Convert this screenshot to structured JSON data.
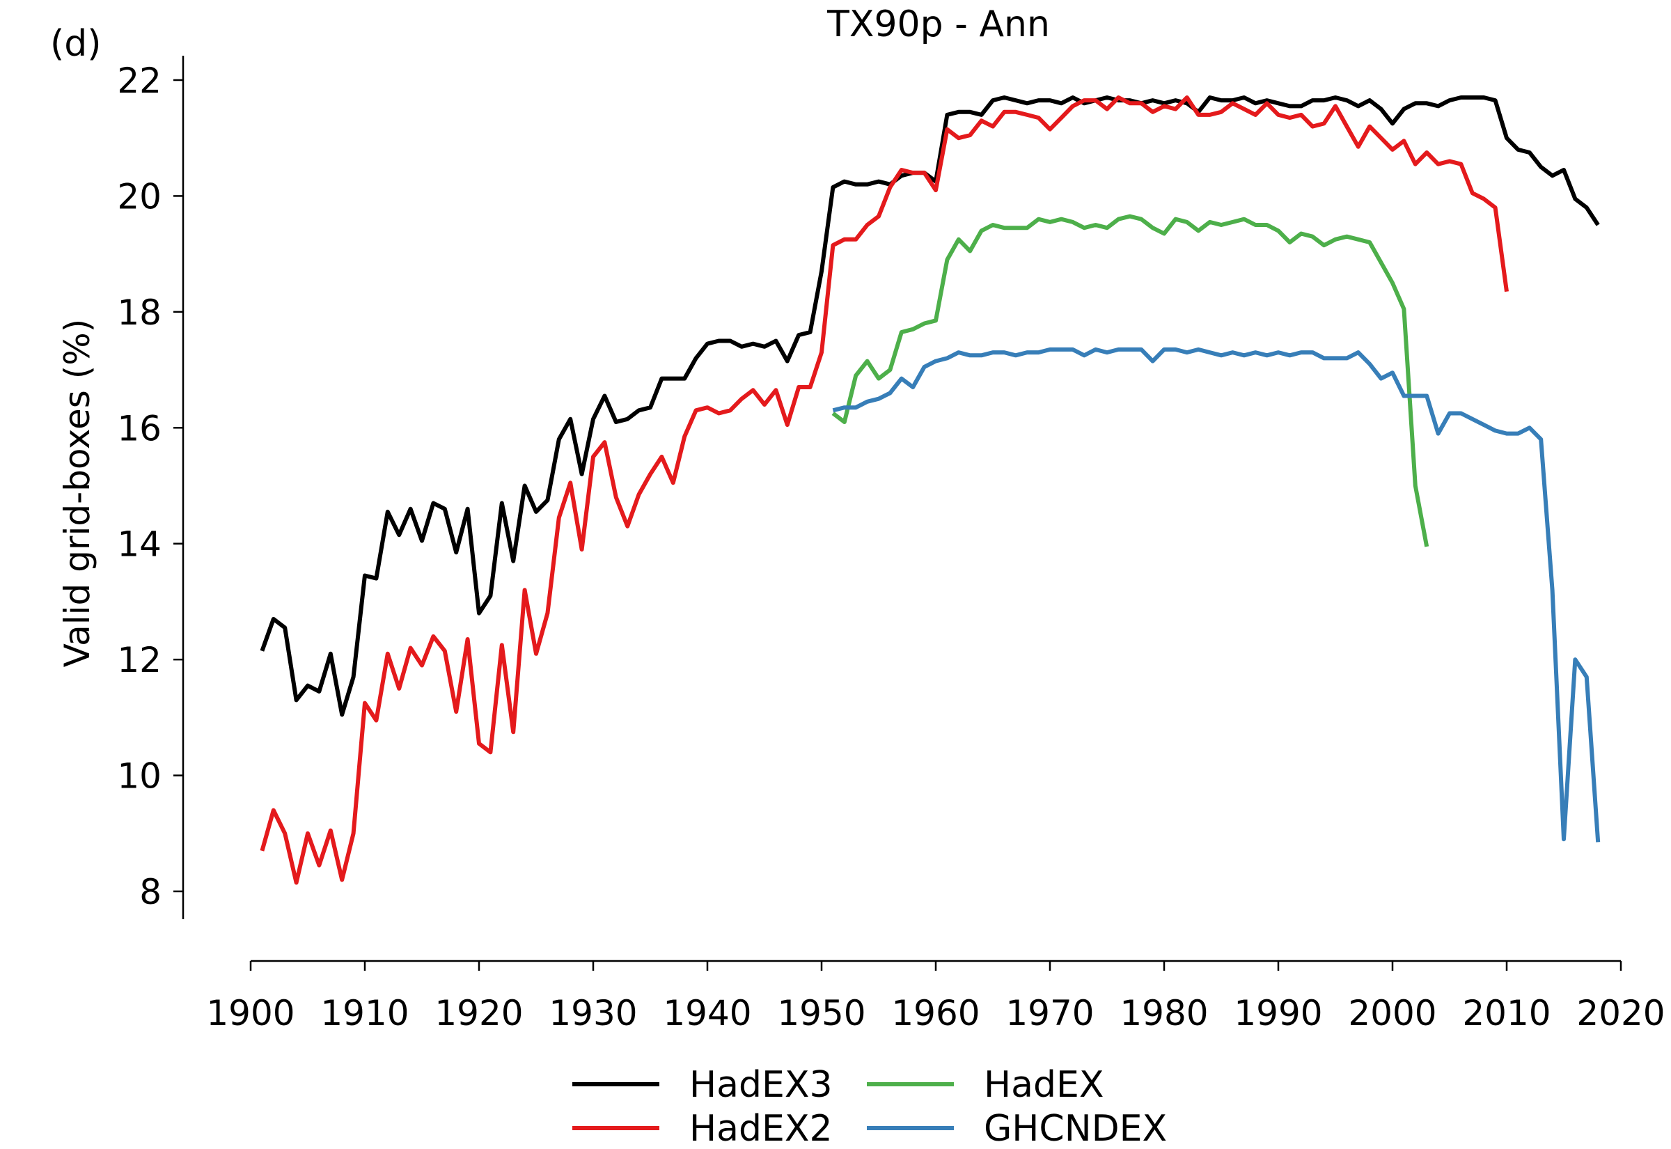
{
  "panel_label": "(d)",
  "chart_data": {
    "type": "line",
    "title": "TX90p - Ann",
    "xlabel": "",
    "ylabel": "Valid grid-boxes (%)",
    "xlim": [
      1900,
      2020
    ],
    "ylim": [
      7.5,
      22.4
    ],
    "xticks": [
      1900,
      1910,
      1920,
      1930,
      1940,
      1950,
      1960,
      1970,
      1980,
      1990,
      2000,
      2010,
      2020
    ],
    "yticks": [
      8,
      10,
      12,
      14,
      16,
      18,
      20,
      22
    ],
    "grid": false,
    "legend_position": "bottom-center",
    "series": [
      {
        "name": "HadEX3",
        "color": "#000000",
        "x_start": 1901,
        "values": [
          12.15,
          12.7,
          12.55,
          11.3,
          11.55,
          11.45,
          12.1,
          11.05,
          11.7,
          13.45,
          13.4,
          14.55,
          14.15,
          14.6,
          14.05,
          14.7,
          14.6,
          13.85,
          14.6,
          12.8,
          13.1,
          14.7,
          13.7,
          15.0,
          14.55,
          14.75,
          15.8,
          16.15,
          15.2,
          16.15,
          16.55,
          16.1,
          16.15,
          16.3,
          16.35,
          16.85,
          16.85,
          16.85,
          17.2,
          17.45,
          17.5,
          17.5,
          17.4,
          17.45,
          17.4,
          17.5,
          17.15,
          17.6,
          17.65,
          18.7,
          20.15,
          20.25,
          20.2,
          20.2,
          20.25,
          20.2,
          20.35,
          20.4,
          20.4,
          20.25,
          21.4,
          21.45,
          21.45,
          21.4,
          21.65,
          21.7,
          21.65,
          21.6,
          21.65,
          21.65,
          21.6,
          21.7,
          21.6,
          21.65,
          21.7,
          21.65,
          21.65,
          21.6,
          21.65,
          21.6,
          21.65,
          21.6,
          21.45,
          21.7,
          21.65,
          21.65,
          21.7,
          21.6,
          21.65,
          21.6,
          21.55,
          21.55,
          21.65,
          21.65,
          21.7,
          21.65,
          21.55,
          21.65,
          21.5,
          21.25,
          21.5,
          21.6,
          21.6,
          21.55,
          21.65,
          21.7,
          21.7,
          21.7,
          21.65,
          21.0,
          20.8,
          20.75,
          20.5,
          20.35,
          20.45,
          19.95,
          19.8,
          19.5
        ]
      },
      {
        "name": "HadEX2",
        "color": "#e41a1c",
        "x_start": 1901,
        "values": [
          8.7,
          9.4,
          9.0,
          8.15,
          9.0,
          8.45,
          9.05,
          8.2,
          9.0,
          11.25,
          10.95,
          12.1,
          11.5,
          12.2,
          11.9,
          12.4,
          12.15,
          11.1,
          12.35,
          10.55,
          10.4,
          12.25,
          10.75,
          13.2,
          12.1,
          12.8,
          14.45,
          15.05,
          13.9,
          15.5,
          15.75,
          14.8,
          14.3,
          14.85,
          15.2,
          15.5,
          15.05,
          15.85,
          16.3,
          16.35,
          16.25,
          16.3,
          16.5,
          16.65,
          16.4,
          16.65,
          16.05,
          16.7,
          16.7,
          17.3,
          19.15,
          19.25,
          19.25,
          19.5,
          19.65,
          20.15,
          20.45,
          20.4,
          20.4,
          20.1,
          21.15,
          21.0,
          21.05,
          21.3,
          21.2,
          21.45,
          21.45,
          21.4,
          21.35,
          21.15,
          21.35,
          21.55,
          21.65,
          21.65,
          21.5,
          21.7,
          21.6,
          21.6,
          21.45,
          21.55,
          21.5,
          21.7,
          21.4,
          21.4,
          21.45,
          21.6,
          21.5,
          21.4,
          21.6,
          21.4,
          21.35,
          21.4,
          21.2,
          21.25,
          21.55,
          21.2,
          20.85,
          21.2,
          21.0,
          20.8,
          20.95,
          20.55,
          20.75,
          20.55,
          20.6,
          20.55,
          20.05,
          19.95,
          19.8,
          18.35
        ]
      },
      {
        "name": "HadEX",
        "color": "#4daf4a",
        "x_start": 1951,
        "values": [
          16.25,
          16.1,
          16.9,
          17.15,
          16.85,
          17.0,
          17.65,
          17.7,
          17.8,
          17.85,
          18.9,
          19.25,
          19.05,
          19.4,
          19.5,
          19.45,
          19.45,
          19.45,
          19.6,
          19.55,
          19.6,
          19.55,
          19.45,
          19.5,
          19.45,
          19.6,
          19.65,
          19.6,
          19.45,
          19.35,
          19.6,
          19.55,
          19.4,
          19.55,
          19.5,
          19.55,
          19.6,
          19.5,
          19.5,
          19.4,
          19.2,
          19.35,
          19.3,
          19.15,
          19.25,
          19.3,
          19.25,
          19.2,
          18.85,
          18.5,
          18.05,
          15.0,
          13.95
        ]
      },
      {
        "name": "GHCNDEX",
        "color": "#377eb8",
        "x_start": 1951,
        "values": [
          16.3,
          16.35,
          16.35,
          16.45,
          16.5,
          16.6,
          16.85,
          16.7,
          17.05,
          17.15,
          17.2,
          17.3,
          17.25,
          17.25,
          17.3,
          17.3,
          17.25,
          17.3,
          17.3,
          17.35,
          17.35,
          17.35,
          17.25,
          17.35,
          17.3,
          17.35,
          17.35,
          17.35,
          17.15,
          17.35,
          17.35,
          17.3,
          17.35,
          17.3,
          17.25,
          17.3,
          17.25,
          17.3,
          17.25,
          17.3,
          17.25,
          17.3,
          17.3,
          17.2,
          17.2,
          17.2,
          17.3,
          17.1,
          16.85,
          16.95,
          16.55,
          16.55,
          16.55,
          15.9,
          16.25,
          16.25,
          16.15,
          16.05,
          15.95,
          15.9,
          15.9,
          16.0,
          15.8,
          13.2,
          8.9,
          12.0,
          11.7,
          8.85
        ]
      }
    ]
  }
}
